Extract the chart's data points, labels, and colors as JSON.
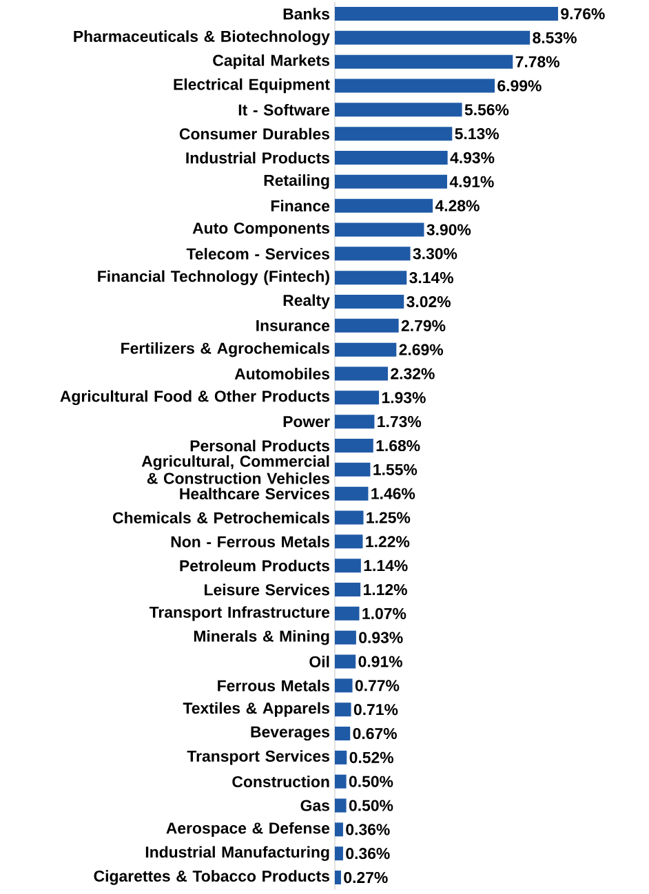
{
  "chart_data": {
    "type": "bar",
    "orientation": "horizontal",
    "color": "#1f5aa6",
    "categories": [
      "Banks",
      "Pharmaceuticals & Biotechnology",
      "Capital Markets",
      "Electrical Equipment",
      "It - Software",
      "Consumer Durables",
      "Industrial Products",
      "Retailing",
      "Finance",
      "Auto Components",
      "Telecom - Services",
      "Financial Technology (Fintech)",
      "Realty",
      "Insurance",
      "Fertilizers & Agrochemicals",
      "Automobiles",
      "Agricultural Food & Other Products",
      "Power",
      "Personal Products",
      "Agricultural, Commercial & Construction Vehicles",
      "Healthcare Services",
      "Chemicals & Petrochemicals",
      "Non - Ferrous Metals",
      "Petroleum Products",
      "Leisure Services",
      "Transport Infrastructure",
      "Minerals & Mining",
      "Oil",
      "Ferrous Metals",
      "Textiles & Apparels",
      "Beverages",
      "Transport Services",
      "Construction",
      "Gas",
      "Aerospace & Defense",
      "Industrial Manufacturing",
      "Cigarettes & Tobacco Products"
    ],
    "values": [
      9.76,
      8.53,
      7.78,
      6.99,
      5.56,
      5.13,
      4.93,
      4.91,
      4.28,
      3.9,
      3.3,
      3.14,
      3.02,
      2.79,
      2.69,
      2.32,
      1.93,
      1.73,
      1.68,
      1.55,
      1.46,
      1.25,
      1.22,
      1.14,
      1.12,
      1.07,
      0.93,
      0.91,
      0.77,
      0.71,
      0.67,
      0.52,
      0.5,
      0.5,
      0.36,
      0.36,
      0.27
    ],
    "value_labels": [
      "9.76%",
      "8.53%",
      "7.78%",
      "6.99%",
      "5.56%",
      "5.13%",
      "4.93%",
      "4.91%",
      "4.28%",
      "3.90%",
      "3.30%",
      "3.14%",
      "3.02%",
      "2.79%",
      "2.69%",
      "2.32%",
      "1.93%",
      "1.73%",
      "1.68%",
      "1.55%",
      "1.46%",
      "1.25%",
      "1.22%",
      "1.14%",
      "1.12%",
      "1.07%",
      "0.93%",
      "0.91%",
      "0.77%",
      "0.71%",
      "0.67%",
      "0.52%",
      "0.50%",
      "0.50%",
      "0.36%",
      "0.36%",
      "0.27%"
    ],
    "grid": false
  }
}
